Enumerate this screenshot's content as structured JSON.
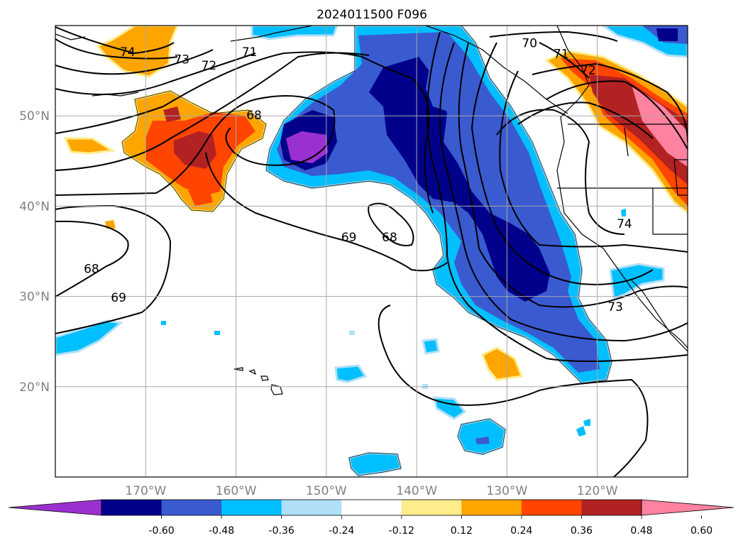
{
  "map": {
    "title": "2024011500 F096",
    "projection": "plate-carree",
    "extent": {
      "lon_min": -180,
      "lon_max": -110,
      "lat_min": 10,
      "lat_max": 60
    },
    "gridlines": true,
    "lon_ticks": [
      {
        "value": -170,
        "label": "170°W"
      },
      {
        "value": -160,
        "label": "160°W"
      },
      {
        "value": -150,
        "label": "150°W"
      },
      {
        "value": -140,
        "label": "140°W"
      },
      {
        "value": -130,
        "label": "130°W"
      },
      {
        "value": -120,
        "label": "120°W"
      }
    ],
    "lat_ticks": [
      {
        "value": 50,
        "label": "50°N"
      },
      {
        "value": 40,
        "label": "40°N"
      },
      {
        "value": 30,
        "label": "30°N"
      },
      {
        "value": 20,
        "label": "20°N"
      }
    ],
    "contour_labels": [
      {
        "text": "74",
        "lon": -172,
        "lat": 57
      },
      {
        "text": "73",
        "lon": -166,
        "lat": 56.2
      },
      {
        "text": "72",
        "lon": -163,
        "lat": 55.5
      },
      {
        "text": "71",
        "lon": -158.5,
        "lat": 57
      },
      {
        "text": "68",
        "lon": -158,
        "lat": 50
      },
      {
        "text": "69",
        "lon": -147.5,
        "lat": 36.5
      },
      {
        "text": "68",
        "lon": -143,
        "lat": 36.5
      },
      {
        "text": "70",
        "lon": -127.5,
        "lat": 58
      },
      {
        "text": "71",
        "lon": -124,
        "lat": 56.8
      },
      {
        "text": "72",
        "lon": -121,
        "lat": 55
      },
      {
        "text": "74",
        "lon": -117,
        "lat": 38
      },
      {
        "text": "73",
        "lon": -118,
        "lat": 28.8
      },
      {
        "text": "68",
        "lon": -176,
        "lat": 33
      },
      {
        "text": "69",
        "lon": -173,
        "lat": 29.8
      }
    ]
  },
  "colorbar": {
    "ticks": [
      "-0.60",
      "-0.48",
      "-0.36",
      "-0.24",
      "-0.12",
      "0.12",
      "0.24",
      "0.36",
      "0.48",
      "0.60"
    ],
    "colors": [
      "#9b30d0",
      "#00008b",
      "#3a5ad0",
      "#00bfff",
      "#b0e0f8",
      "#ffffff",
      "#ffec8b",
      "#ffa500",
      "#ff4500",
      "#b22222",
      "#ff82a0"
    ]
  }
}
